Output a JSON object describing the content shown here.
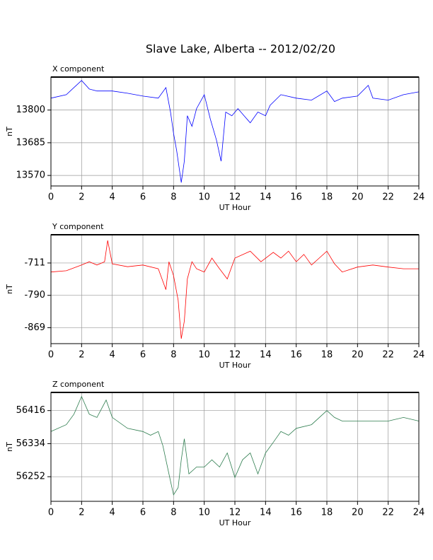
{
  "title": "Slave Lake, Alberta -- 2012/02/20",
  "chart_data": [
    {
      "type": "line",
      "title": "X component",
      "x_label": "UT Hour",
      "y_label": "nT",
      "color": "#0000ff",
      "grid": true,
      "xlim": [
        0,
        24
      ],
      "xticks": [
        0,
        2,
        4,
        6,
        8,
        10,
        12,
        14,
        16,
        18,
        20,
        22,
        24
      ],
      "ylim": [
        13533,
        13916
      ],
      "yticks": [
        13570,
        13685,
        13800
      ],
      "x": [
        0,
        1,
        2,
        2.5,
        3,
        4,
        5,
        6,
        7,
        7.5,
        7.8,
        8,
        8.2,
        8.5,
        8.7,
        8.9,
        9.2,
        9.5,
        10,
        10.4,
        10.8,
        11.1,
        11.4,
        11.8,
        12.2,
        12.6,
        13,
        13.5,
        14,
        14.3,
        15,
        16,
        17,
        18,
        18.5,
        19,
        20,
        20.7,
        21,
        22,
        23,
        24
      ],
      "values": [
        13842,
        13854,
        13904,
        13874,
        13867,
        13867,
        13859,
        13849,
        13842,
        13879,
        13793,
        13718,
        13657,
        13545,
        13620,
        13780,
        13743,
        13805,
        13854,
        13768,
        13694,
        13620,
        13793,
        13780,
        13805,
        13780,
        13755,
        13793,
        13780,
        13817,
        13854,
        13842,
        13835,
        13867,
        13830,
        13842,
        13849,
        13887,
        13842,
        13835,
        13854,
        13864
      ]
    },
    {
      "type": "line",
      "title": "Y component",
      "x_label": "UT Hour",
      "y_label": "nT",
      "color": "#ff0000",
      "grid": true,
      "xlim": [
        0,
        24
      ],
      "xticks": [
        0,
        2,
        4,
        6,
        8,
        10,
        12,
        14,
        16,
        18,
        20,
        22,
        24
      ],
      "ylim": [
        -908,
        -642
      ],
      "yticks": [
        -869,
        -790,
        -711
      ],
      "x": [
        0,
        1,
        2,
        2.5,
        3,
        3.5,
        3.7,
        4,
        5,
        6,
        7,
        7.5,
        7.7,
        8,
        8.3,
        8.5,
        8.7,
        8.9,
        9.2,
        9.5,
        10,
        10.5,
        11,
        11.5,
        12,
        13,
        13.7,
        14.5,
        15,
        15.5,
        16,
        16.5,
        17,
        17.5,
        18,
        18.5,
        19,
        20,
        21,
        22,
        23,
        24
      ],
      "values": [
        -733,
        -730,
        -716,
        -708,
        -716,
        -708,
        -656,
        -713,
        -720,
        -716,
        -725,
        -776,
        -708,
        -742,
        -802,
        -896,
        -853,
        -750,
        -708,
        -725,
        -733,
        -699,
        -725,
        -750,
        -699,
        -682,
        -708,
        -685,
        -699,
        -682,
        -708,
        -690,
        -716,
        -699,
        -682,
        -713,
        -733,
        -721,
        -716,
        -721,
        -725,
        -725
      ]
    },
    {
      "type": "line",
      "title": "Z component",
      "x_label": "UT Hour",
      "y_label": "nT",
      "color": "#2e7d4f",
      "grid": true,
      "xlim": [
        0,
        24
      ],
      "xticks": [
        0,
        2,
        4,
        6,
        8,
        10,
        12,
        14,
        16,
        18,
        20,
        22,
        24
      ],
      "ylim": [
        56191,
        56461
      ],
      "yticks": [
        56252,
        56334,
        56416
      ],
      "x": [
        0,
        1,
        1.5,
        2,
        2.5,
        3,
        3.6,
        4,
        5,
        6,
        6.5,
        7,
        7.3,
        7.8,
        8,
        8.3,
        8.5,
        8.7,
        9,
        9.5,
        10,
        10.5,
        11,
        11.5,
        12,
        12.5,
        13,
        13.5,
        14,
        14.5,
        15,
        15.5,
        16,
        17,
        18,
        18.5,
        19,
        20,
        21,
        22,
        23,
        24
      ],
      "values": [
        56364,
        56381,
        56407,
        56451,
        56407,
        56399,
        56442,
        56399,
        56372,
        56364,
        56355,
        56364,
        56329,
        56241,
        56207,
        56225,
        56294,
        56346,
        56259,
        56276,
        56276,
        56294,
        56276,
        56311,
        56250,
        56294,
        56311,
        56259,
        56311,
        56337,
        56364,
        56355,
        56372,
        56381,
        56416,
        56399,
        56390,
        56390,
        56390,
        56390,
        56399,
        56390
      ]
    }
  ]
}
